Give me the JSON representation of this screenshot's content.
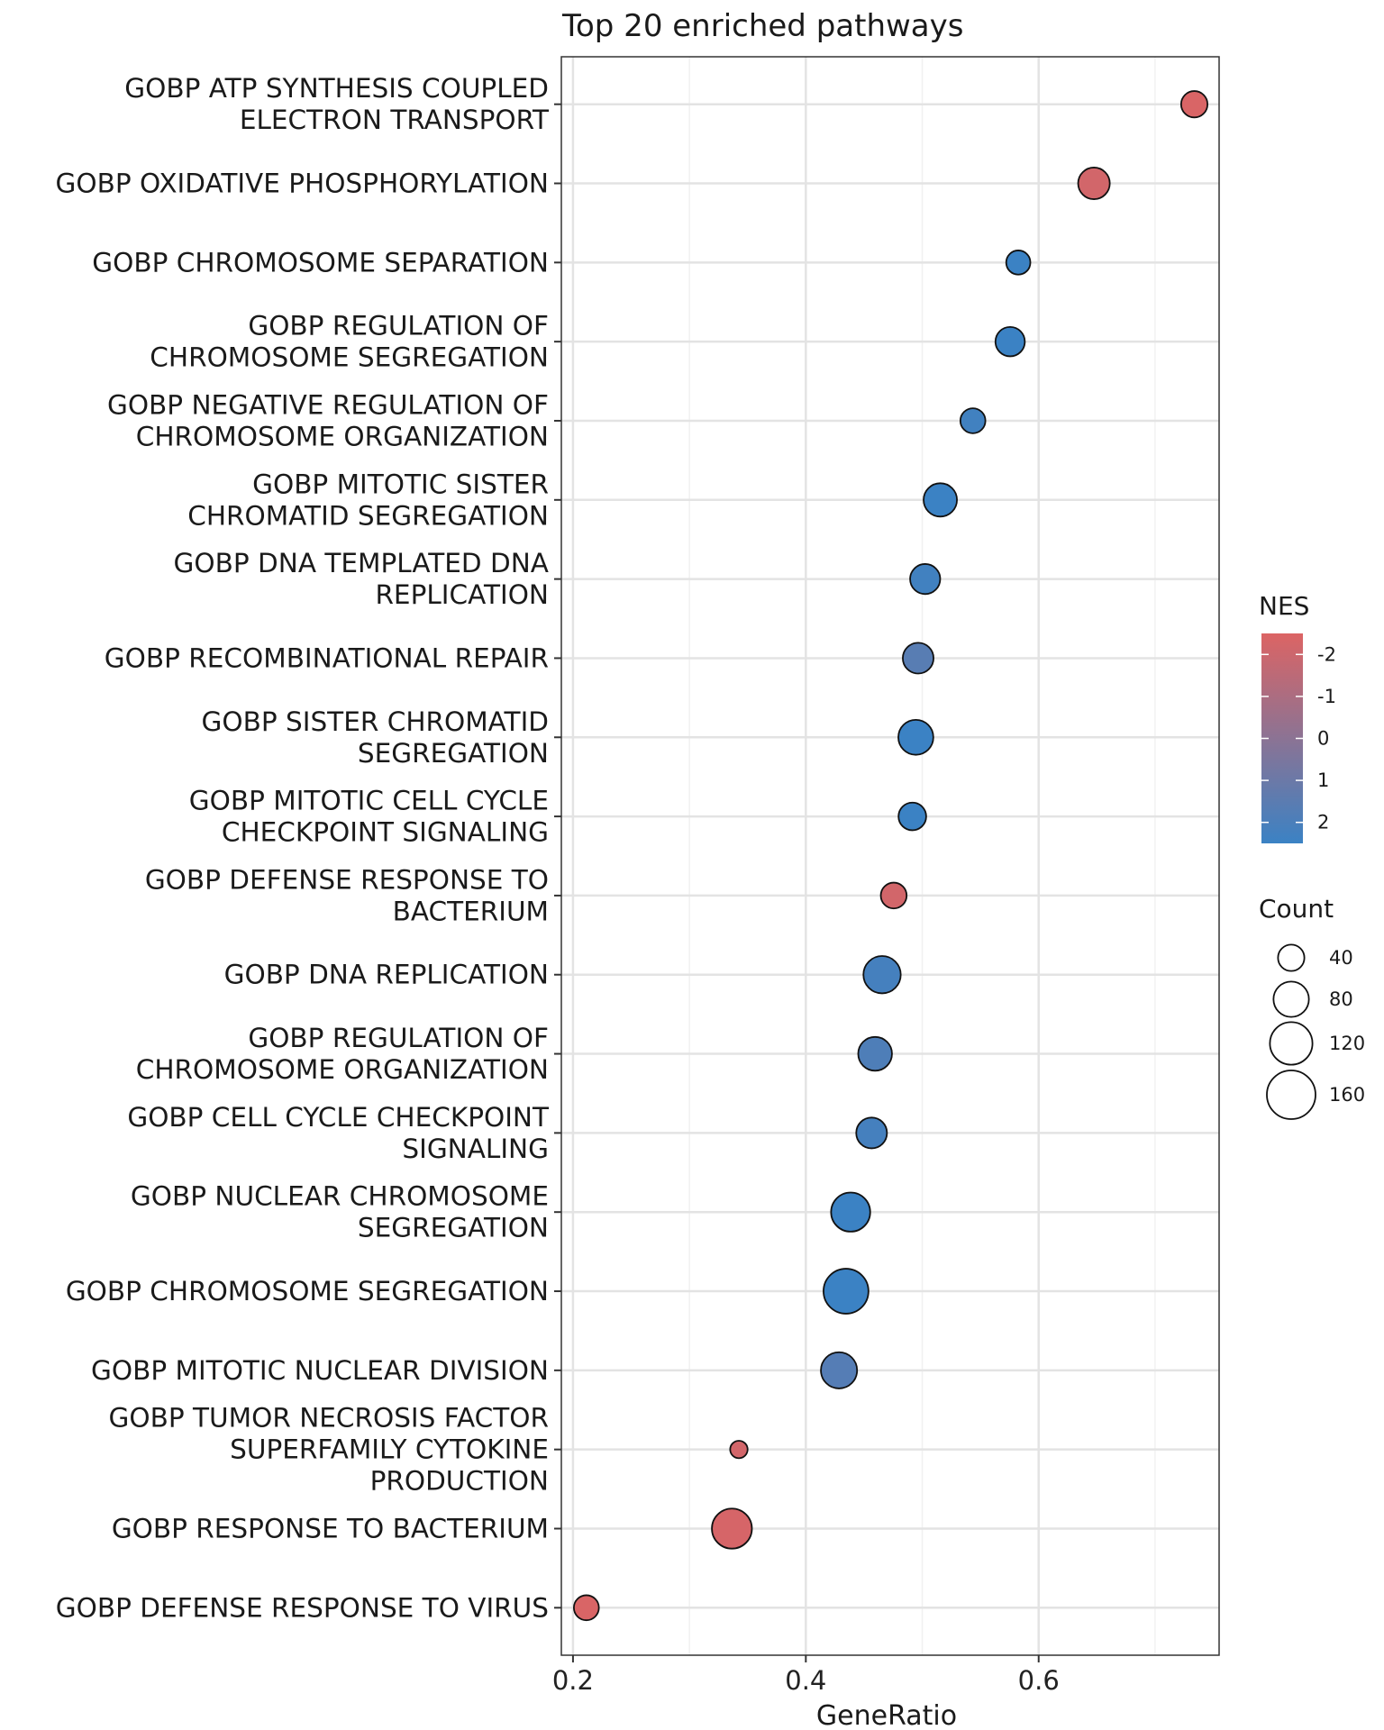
{
  "chart_data": {
    "type": "scatter",
    "title": "Top 20 enriched pathways",
    "xlabel": "GeneRatio",
    "ylabel": "",
    "xlim": [
      0.19,
      0.755
    ],
    "xticks": [
      0.2,
      0.4,
      0.6
    ],
    "xtick_labels": [
      "0.2",
      "0.4",
      "0.6"
    ],
    "grid": true,
    "points": [
      {
        "label": [
          "GOBP ATP SYNTHESIS COUPLED",
          "ELECTRON TRANSPORT"
        ],
        "x": 0.7337,
        "nes": -2.4,
        "count": 40
      },
      {
        "label": [
          "GOBP OXIDATIVE PHOSPHORYLATION"
        ],
        "x": 0.6475,
        "nes": -2.2,
        "count": 62
      },
      {
        "label": [
          "GOBP CHROMOSOME SEPARATION"
        ],
        "x": 0.5825,
        "nes": 2.5,
        "count": 32
      },
      {
        "label": [
          "GOBP REGULATION OF",
          "CHROMOSOME SEGREGATION"
        ],
        "x": 0.5755,
        "nes": 2.5,
        "count": 52
      },
      {
        "label": [
          "GOBP NEGATIVE REGULATION OF",
          "CHROMOSOME ORGANIZATION"
        ],
        "x": 0.5435,
        "nes": 2.3,
        "count": 35
      },
      {
        "label": [
          "GOBP MITOTIC SISTER",
          "CHROMATID SEGREGATION"
        ],
        "x": 0.5155,
        "nes": 2.6,
        "count": 70
      },
      {
        "label": [
          "GOBP DNA TEMPLATED DNA",
          "REPLICATION"
        ],
        "x": 0.5025,
        "nes": 2.3,
        "count": 55
      },
      {
        "label": [
          "GOBP RECOMBINATIONAL REPAIR"
        ],
        "x": 0.4965,
        "nes": 1.6,
        "count": 58
      },
      {
        "label": [
          "GOBP SISTER CHROMATID",
          "SEGREGATION"
        ],
        "x": 0.4945,
        "nes": 2.5,
        "count": 78
      },
      {
        "label": [
          "GOBP MITOTIC CELL CYCLE",
          "CHECKPOINT SIGNALING"
        ],
        "x": 0.4915,
        "nes": 2.5,
        "count": 45
      },
      {
        "label": [
          "GOBP DEFENSE RESPONSE TO",
          "BACTERIUM"
        ],
        "x": 0.4755,
        "nes": -2.2,
        "count": 38
      },
      {
        "label": [
          "GOBP DNA REPLICATION"
        ],
        "x": 0.4655,
        "nes": 2.2,
        "count": 90
      },
      {
        "label": [
          "GOBP REGULATION OF",
          "CHROMOSOME ORGANIZATION"
        ],
        "x": 0.4595,
        "nes": 1.9,
        "count": 72
      },
      {
        "label": [
          "GOBP CELL CYCLE CHECKPOINT",
          "SIGNALING"
        ],
        "x": 0.4565,
        "nes": 2.2,
        "count": 58
      },
      {
        "label": [
          "GOBP NUCLEAR CHROMOSOME",
          "SEGREGATION"
        ],
        "x": 0.4385,
        "nes": 2.5,
        "count": 100
      },
      {
        "label": [
          "GOBP CHROMOSOME SEGREGATION"
        ],
        "x": 0.4345,
        "nes": 2.5,
        "count": 135
      },
      {
        "label": [
          "GOBP MITOTIC NUCLEAR DIVISION"
        ],
        "x": 0.4285,
        "nes": 1.7,
        "count": 84
      },
      {
        "label": [
          "GOBP TUMOR NECROSIS FACTOR",
          "SUPERFAMILY CYTOKINE",
          "PRODUCTION"
        ],
        "x": 0.3425,
        "nes": -2.2,
        "count": 12
      },
      {
        "label": [
          "GOBP RESPONSE TO BACTERIUM"
        ],
        "x": 0.3365,
        "nes": -2.3,
        "count": 105
      },
      {
        "label": [
          "GOBP DEFENSE RESPONSE TO VIRUS"
        ],
        "x": 0.2115,
        "nes": -2.4,
        "count": 35
      }
    ],
    "color_legend": {
      "title": "NES",
      "range": [
        -2.5,
        2.5
      ],
      "ticks": [
        -2,
        -1,
        0,
        1,
        2
      ],
      "tick_labels": [
        "-2",
        "-1",
        "0",
        "1",
        "2"
      ],
      "low_color": "#dc6464",
      "high_color": "#3b82c4"
    },
    "size_legend": {
      "title": "Count",
      "values": [
        40,
        80,
        120,
        160
      ],
      "labels": [
        "40",
        "80",
        "120",
        "160"
      ]
    },
    "legend_position": "right"
  }
}
